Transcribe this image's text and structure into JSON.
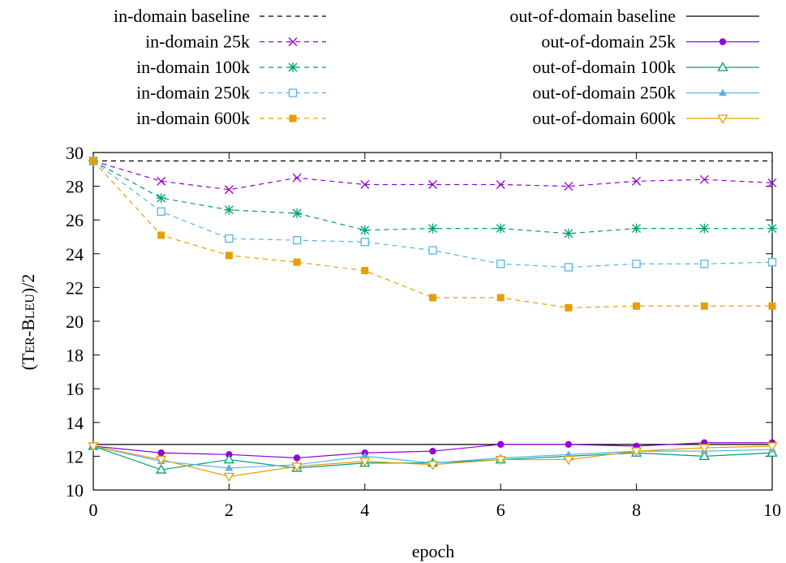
{
  "chart_data": {
    "type": "line",
    "xlabel": "epoch",
    "ylabel": "(TER-BLEU)/2",
    "ylabel_parts": [
      "(T",
      "ER",
      "-B",
      "LEU",
      ")/2"
    ],
    "xlim": [
      0,
      10
    ],
    "ylim": [
      10,
      30
    ],
    "xticks": [
      0,
      2,
      4,
      6,
      8,
      10
    ],
    "yticks": [
      10,
      12,
      14,
      16,
      18,
      20,
      22,
      24,
      26,
      28,
      30
    ],
    "grid": false,
    "legend_position": "top",
    "x": [
      0,
      1,
      2,
      3,
      4,
      5,
      6,
      7,
      8,
      9,
      10
    ],
    "series": [
      {
        "name": "in-domain baseline",
        "color": "#000000",
        "dash": "dashed",
        "marker": "none",
        "values": [
          29.5,
          29.5,
          29.5,
          29.5,
          29.5,
          29.5,
          29.5,
          29.5,
          29.5,
          29.5,
          29.5
        ]
      },
      {
        "name": "out-of-domain baseline",
        "color": "#000000",
        "dash": "solid",
        "marker": "none",
        "values": [
          12.7,
          12.7,
          12.7,
          12.7,
          12.7,
          12.7,
          12.7,
          12.7,
          12.7,
          12.7,
          12.7
        ]
      },
      {
        "name": "in-domain 25k",
        "color": "#9400d3",
        "dash": "dashed",
        "marker": "cross",
        "values": [
          29.5,
          28.3,
          27.8,
          28.5,
          28.1,
          28.1,
          28.1,
          28.0,
          28.3,
          28.4,
          28.2
        ]
      },
      {
        "name": "out-of-domain 25k",
        "color": "#9400d3",
        "dash": "solid",
        "marker": "dot",
        "values": [
          12.6,
          12.2,
          12.1,
          11.9,
          12.2,
          12.3,
          12.7,
          12.7,
          12.6,
          12.8,
          12.8
        ]
      },
      {
        "name": "in-domain 100k",
        "color": "#009e73",
        "dash": "dashed",
        "marker": "star",
        "values": [
          29.5,
          27.3,
          26.6,
          26.4,
          25.4,
          25.5,
          25.5,
          25.2,
          25.5,
          25.5,
          25.5
        ]
      },
      {
        "name": "out-of-domain 100k",
        "color": "#009e73",
        "dash": "solid",
        "marker": "triangle-open",
        "values": [
          12.6,
          11.2,
          11.8,
          11.3,
          11.6,
          11.6,
          11.8,
          12.0,
          12.2,
          12.0,
          12.2
        ]
      },
      {
        "name": "in-domain 250k",
        "color": "#56b4e9",
        "dash": "dashed",
        "marker": "square-open",
        "values": [
          29.5,
          26.5,
          24.9,
          24.8,
          24.7,
          24.2,
          23.4,
          23.2,
          23.4,
          23.4,
          23.5
        ]
      },
      {
        "name": "out-of-domain 250k",
        "color": "#56b4e9",
        "dash": "solid",
        "marker": "triangle-filled",
        "values": [
          12.6,
          11.7,
          11.3,
          11.5,
          12.0,
          11.6,
          11.9,
          12.1,
          12.3,
          12.3,
          12.4
        ]
      },
      {
        "name": "in-domain 600k",
        "color": "#e69f00",
        "dash": "dashed",
        "marker": "square-filled",
        "values": [
          29.5,
          25.1,
          23.9,
          23.5,
          23.0,
          21.4,
          21.4,
          20.8,
          20.9,
          20.9,
          20.9
        ]
      },
      {
        "name": "out-of-domain 600k",
        "color": "#e69f00",
        "dash": "solid",
        "marker": "triangle-down-open",
        "values": [
          12.6,
          11.8,
          10.8,
          11.4,
          11.7,
          11.5,
          11.8,
          11.8,
          12.3,
          12.5,
          12.6
        ]
      }
    ]
  }
}
